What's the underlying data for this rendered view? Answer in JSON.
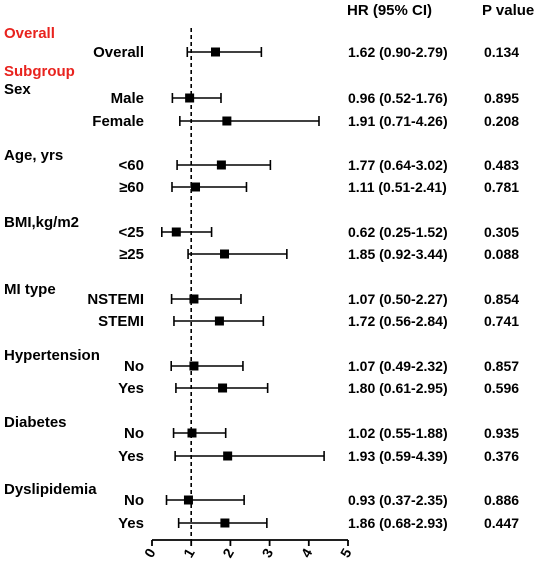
{
  "chart_data": {
    "type": "forest",
    "headers": {
      "hr": "HR (95% CI)",
      "p": "P value"
    },
    "labels": {
      "overall": "Overall",
      "subgroup": "Subgroup"
    },
    "reference_line": 1,
    "xlim": [
      0,
      5
    ],
    "xticks": [
      "0",
      "1",
      "2",
      "3",
      "4",
      "5"
    ],
    "groups": [
      "Sex",
      "Age, yrs",
      "BMI,kg/m2",
      "MI type",
      "Hypertension",
      "Diabetes",
      "Dyslipidemia"
    ],
    "rows": [
      {
        "label": "Overall",
        "hr": 1.62,
        "lo": 0.9,
        "hi": 2.79,
        "hr_text": "1.62 (0.90-2.79)",
        "p": "0.134"
      },
      {
        "label": "Male",
        "hr": 0.96,
        "lo": 0.52,
        "hi": 1.76,
        "hr_text": "0.96 (0.52-1.76)",
        "p": "0.895"
      },
      {
        "label": "Female",
        "hr": 1.91,
        "lo": 0.71,
        "hi": 4.26,
        "hr_text": "1.91 (0.71-4.26)",
        "p": "0.208"
      },
      {
        "label": "<60",
        "hr": 1.77,
        "lo": 0.64,
        "hi": 3.02,
        "hr_text": "1.77 (0.64-3.02)",
        "p": "0.483"
      },
      {
        "label": "≥60",
        "hr": 1.11,
        "lo": 0.51,
        "hi": 2.41,
        "hr_text": "1.11 (0.51-2.41)",
        "p": "0.781"
      },
      {
        "label": "<25",
        "hr": 0.62,
        "lo": 0.25,
        "hi": 1.52,
        "hr_text": "0.62 (0.25-1.52)",
        "p": "0.305"
      },
      {
        "label": "≥25",
        "hr": 1.85,
        "lo": 0.92,
        "hi": 3.44,
        "hr_text": "1.85 (0.92-3.44)",
        "p": "0.088"
      },
      {
        "label": "NSTEMI",
        "hr": 1.07,
        "lo": 0.5,
        "hi": 2.27,
        "hr_text": "1.07 (0.50-2.27)",
        "p": "0.854"
      },
      {
        "label": "STEMI",
        "hr": 1.72,
        "lo": 0.56,
        "hi": 2.84,
        "hr_text": "1.72 (0.56-2.84)",
        "p": "0.741"
      },
      {
        "label": "No",
        "hr": 1.07,
        "lo": 0.49,
        "hi": 2.32,
        "hr_text": "1.07 (0.49-2.32)",
        "p": "0.857"
      },
      {
        "label": "Yes",
        "hr": 1.8,
        "lo": 0.61,
        "hi": 2.95,
        "hr_text": "1.80 (0.61-2.95)",
        "p": "0.596"
      },
      {
        "label": "No",
        "hr": 1.02,
        "lo": 0.55,
        "hi": 1.88,
        "hr_text": "1.02 (0.55-1.88)",
        "p": "0.935"
      },
      {
        "label": "Yes",
        "hr": 1.93,
        "lo": 0.59,
        "hi": 4.39,
        "hr_text": "1.93 (0.59-4.39)",
        "p": "0.376"
      },
      {
        "label": "No",
        "hr": 0.93,
        "lo": 0.37,
        "hi": 2.35,
        "hr_text": "0.93 (0.37-2.35)",
        "p": "0.886"
      },
      {
        "label": "Yes",
        "hr": 1.86,
        "lo": 0.68,
        "hi": 2.93,
        "hr_text": "1.86 (0.68-2.93)",
        "p": "0.447"
      }
    ]
  },
  "colors": {
    "accent_red": "#e8231e",
    "ink": "#000000"
  }
}
